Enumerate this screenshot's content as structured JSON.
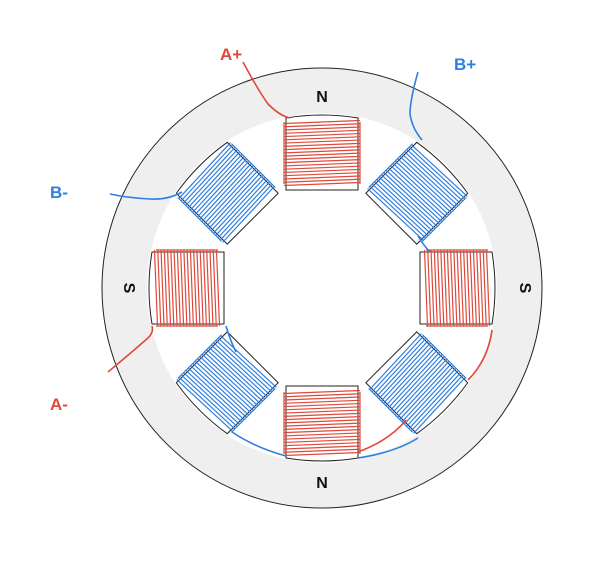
{
  "wire_labels": {
    "a_plus": "A+",
    "a_minus": "A-",
    "b_plus": "B+",
    "b_minus": "B-"
  },
  "pole_labels": {
    "top": "N",
    "bottom": "N",
    "left": "S",
    "right": "S"
  },
  "colors": {
    "phase_a": "#e0493a",
    "phase_b": "#2f7fe0",
    "stator": "#efefef",
    "outline": "#222222",
    "pole": "#ffffff"
  }
}
